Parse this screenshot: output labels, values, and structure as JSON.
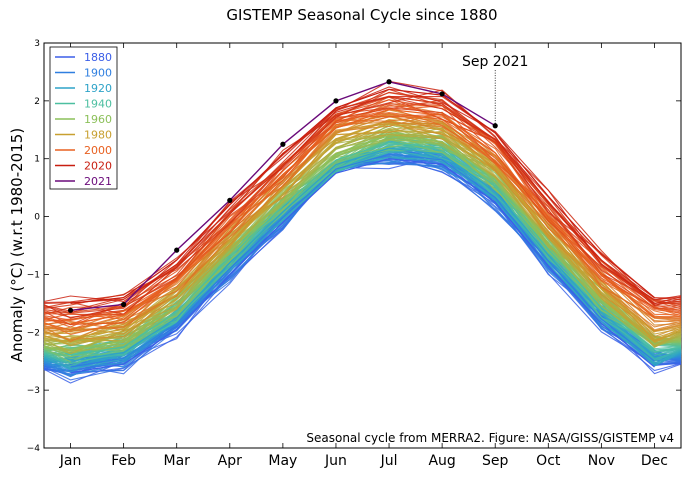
{
  "chart_data": {
    "type": "line",
    "title": "GISTEMP Seasonal Cycle since 1880",
    "ylabel": "Anomaly (°C) (w.r.t 1980-2015)",
    "xlabel": "",
    "categories": [
      "Jan",
      "Feb",
      "Mar",
      "Apr",
      "May",
      "Jun",
      "Jul",
      "Aug",
      "Sep",
      "Oct",
      "Nov",
      "Dec"
    ],
    "ylim": [
      -4,
      3
    ],
    "yticks": [
      "3",
      "2",
      "1",
      "0",
      "−1",
      "−2",
      "−3",
      "−4"
    ],
    "grid": false,
    "legend_position": "top-left",
    "legend": [
      {
        "label": "1880",
        "color": "#3b5ee8"
      },
      {
        "label": "1900",
        "color": "#2f7fe0"
      },
      {
        "label": "1920",
        "color": "#2ea3c8"
      },
      {
        "label": "1940",
        "color": "#4cbfa0"
      },
      {
        "label": "1960",
        "color": "#8cc05a"
      },
      {
        "label": "1980",
        "color": "#c8a030"
      },
      {
        "label": "2000",
        "color": "#e86020"
      },
      {
        "label": "2020",
        "color": "#c81e10"
      },
      {
        "label": "2021",
        "color": "#6a0a7a"
      }
    ],
    "series": [
      {
        "name": "1880",
        "values": [
          -2.7,
          -2.55,
          -1.95,
          -1.0,
          -0.1,
          0.75,
          1.0,
          0.9,
          0.25,
          -0.85,
          -1.85,
          -2.6
        ]
      },
      {
        "name": "1900",
        "values": [
          -2.6,
          -2.45,
          -1.85,
          -0.9,
          -0.02,
          0.82,
          1.08,
          0.98,
          0.33,
          -0.77,
          -1.77,
          -2.5
        ]
      },
      {
        "name": "1920",
        "values": [
          -2.5,
          -2.35,
          -1.75,
          -0.8,
          0.08,
          0.9,
          1.18,
          1.08,
          0.43,
          -0.67,
          -1.67,
          -2.4
        ]
      },
      {
        "name": "1940",
        "values": [
          -2.4,
          -2.25,
          -1.65,
          -0.7,
          0.18,
          0.98,
          1.28,
          1.18,
          0.53,
          -0.57,
          -1.57,
          -2.3
        ]
      },
      {
        "name": "1960",
        "values": [
          -2.3,
          -2.15,
          -1.55,
          -0.6,
          0.28,
          1.08,
          1.4,
          1.3,
          0.65,
          -0.45,
          -1.45,
          -2.2
        ]
      },
      {
        "name": "1980",
        "values": [
          -2.1,
          -1.95,
          -1.35,
          -0.4,
          0.48,
          1.28,
          1.6,
          1.5,
          0.85,
          -0.25,
          -1.25,
          -2.0
        ]
      },
      {
        "name": "2000",
        "values": [
          -1.85,
          -1.7,
          -1.1,
          -0.15,
          0.73,
          1.53,
          1.85,
          1.75,
          1.1,
          0.0,
          -1.0,
          -1.75
        ]
      },
      {
        "name": "2020",
        "values": [
          -1.5,
          -1.4,
          -0.75,
          0.2,
          1.08,
          1.88,
          2.2,
          2.1,
          1.45,
          0.35,
          -0.65,
          -1.4
        ]
      },
      {
        "name": "2021",
        "values": [
          -1.62,
          -1.52,
          -0.58,
          0.28,
          1.25,
          2.0,
          2.33,
          2.12,
          1.57,
          null,
          null,
          null
        ]
      }
    ],
    "annotations": [
      {
        "text": "Sep 2021",
        "category": "Sep",
        "y": 2.6,
        "line_from": 2.6,
        "line_to": 1.57
      }
    ],
    "source_note": "Seasonal cycle from MERRA2. Figure: NASA/GISS/GISTEMP v4"
  }
}
